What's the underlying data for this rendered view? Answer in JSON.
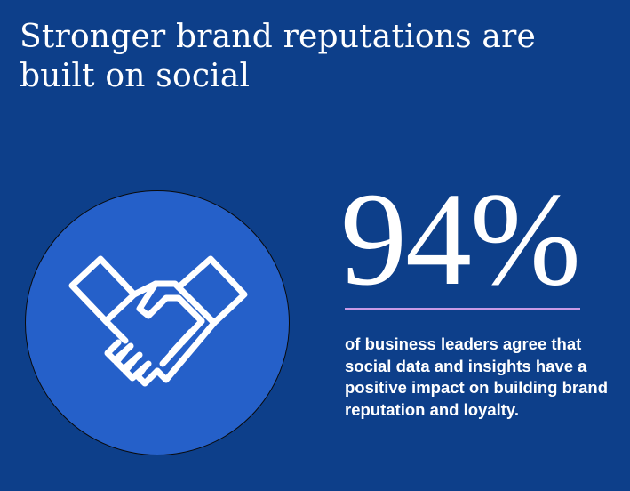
{
  "headline": "Stronger brand reputations are built on social",
  "stat": {
    "value": "94%",
    "description": "of business leaders agree that social data and insights have a positive impact on building brand reputation and loyalty."
  },
  "icon": "handshake-icon",
  "colors": {
    "background": "#0d3f8a",
    "circle": "#2560c9",
    "divider": "#c89ae6",
    "text": "#ffffff"
  }
}
